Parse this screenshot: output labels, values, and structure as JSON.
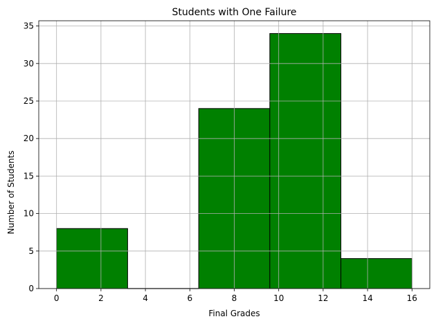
{
  "chart_data": {
    "type": "bar",
    "title": "Students with One Failure",
    "xlabel": "Final Grades",
    "ylabel": "Number of Students",
    "bins": [
      {
        "start": 0.0,
        "end": 3.2,
        "value": 8
      },
      {
        "start": 3.2,
        "end": 6.4,
        "value": 0
      },
      {
        "start": 6.4,
        "end": 9.6,
        "value": 24
      },
      {
        "start": 9.6,
        "end": 12.8,
        "value": 34
      },
      {
        "start": 12.8,
        "end": 16.0,
        "value": 4
      }
    ],
    "xlim": [
      -0.8,
      16.8
    ],
    "ylim": [
      0,
      35.7
    ],
    "xticks": [
      0,
      2,
      4,
      6,
      8,
      10,
      12,
      14,
      16
    ],
    "yticks": [
      0,
      5,
      10,
      15,
      20,
      25,
      30,
      35
    ],
    "grid": true,
    "bar_color": "#008000",
    "edge_color": "#000000"
  }
}
